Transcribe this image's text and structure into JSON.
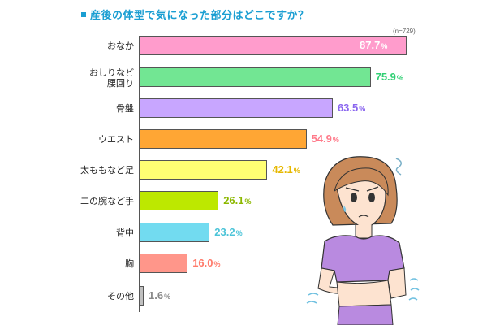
{
  "title": "産後の体型で気になった部分はどこですか？",
  "sample": "(n=729)",
  "chart_data": {
    "type": "bar",
    "orientation": "horizontal",
    "title": "産後の体型で気になった部分はどこですか？",
    "annotation": "(n=729)",
    "unit": "%",
    "categories": [
      "おなか",
      "おしりなど腰回り",
      "骨盤",
      "ウエスト",
      "太ももなど足",
      "二の腕など手",
      "背中",
      "胸",
      "その他"
    ],
    "values": [
      87.7,
      75.9,
      63.5,
      54.9,
      42.1,
      26.1,
      23.2,
      16.0,
      1.6
    ],
    "bar_colors": [
      "#ff9ccc",
      "#72e693",
      "#c8a6ff",
      "#ffa634",
      "#ffff73",
      "#bde800",
      "#72dbf0",
      "#ff968a",
      "#c0c0c0"
    ],
    "label_colors": [
      "#ffffff",
      "#2fcf73",
      "#8a66ef",
      "#ff7a8a",
      "#e6b800",
      "#8cb800",
      "#4cc4d8",
      "#ff7a6a",
      "#888888"
    ],
    "grid": false,
    "legend": null
  },
  "rows": [
    {
      "label1": "おなか",
      "label2": "",
      "value": "87.7",
      "pct": "%"
    },
    {
      "label1": "おしりなど",
      "label2": "腰回り",
      "value": "75.9",
      "pct": "%"
    },
    {
      "label1": "骨盤",
      "label2": "",
      "value": "63.5",
      "pct": "%"
    },
    {
      "label1": "ウエスト",
      "label2": "",
      "value": "54.9",
      "pct": "%"
    },
    {
      "label1": "太ももなど足",
      "label2": "",
      "value": "42.1",
      "pct": "%"
    },
    {
      "label1": "二の腕など手",
      "label2": "",
      "value": "26.1",
      "pct": "%"
    },
    {
      "label1": "背中",
      "label2": "",
      "value": "23.2",
      "pct": "%"
    },
    {
      "label1": "胸",
      "label2": "",
      "value": "16.0",
      "pct": "%"
    },
    {
      "label1": "その他",
      "label2": "",
      "value": "1.6",
      "pct": "%"
    }
  ],
  "illustration": "worried-woman-touching-belly"
}
